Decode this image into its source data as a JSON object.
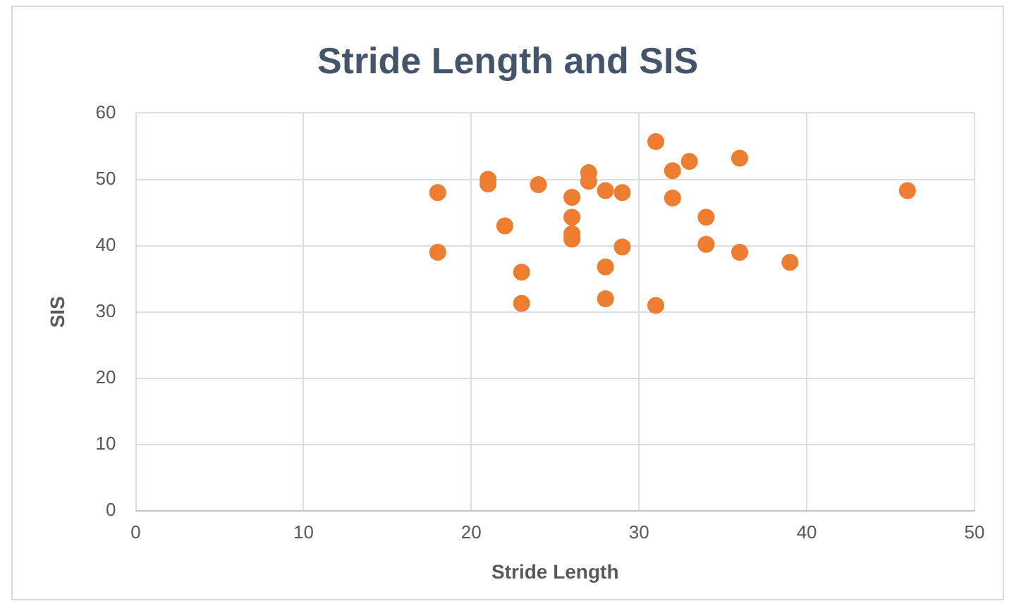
{
  "chart_data": {
    "type": "scatter",
    "title": "Stride Length and SIS",
    "xlabel": "Stride Length",
    "ylabel": "SIS",
    "color": "#ed7d31",
    "marker": "circle",
    "grid": true,
    "legend": false,
    "x": [
      18,
      18,
      21,
      21,
      22,
      23,
      23,
      24,
      26,
      26,
      26,
      26,
      27,
      27,
      28,
      28,
      28,
      29,
      29,
      31,
      31,
      32,
      32,
      33,
      34,
      34,
      36,
      36,
      39,
      46
    ],
    "values": [
      48,
      39,
      50,
      49.3,
      43,
      36,
      31.3,
      49.2,
      47.3,
      44.3,
      41.8,
      41,
      51,
      49.7,
      48.3,
      36.8,
      32,
      48,
      39.8,
      55.7,
      31,
      51.3,
      47.2,
      52.7,
      44.3,
      40.2,
      53.2,
      39,
      37.5,
      48.3
    ],
    "xlim": [
      0,
      50
    ],
    "xticks": [
      0,
      10,
      20,
      30,
      40,
      50
    ],
    "ylim": [
      0,
      60
    ],
    "yticks": [
      0,
      10,
      20,
      30,
      40,
      50,
      60
    ]
  }
}
